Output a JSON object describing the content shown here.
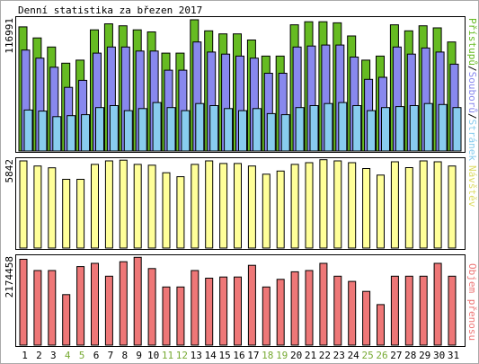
{
  "chart_data": [
    {
      "type": "bar",
      "title": "Denní statistika za březen 2017",
      "y_max_label": "116991",
      "legend": {
        "stranek": "Stránek",
        "sep1": "/",
        "souboru": "Souborů",
        "sep2": "/",
        "pristupu": "Přístupů"
      },
      "categories": [
        "1",
        "2",
        "3",
        "4",
        "5",
        "6",
        "7",
        "8",
        "9",
        "10",
        "11",
        "12",
        "13",
        "14",
        "15",
        "16",
        "17",
        "18",
        "19",
        "20",
        "21",
        "22",
        "23",
        "24",
        "25",
        "26",
        "27",
        "28",
        "29",
        "30",
        "31"
      ],
      "weekend_days": [
        "4",
        "5",
        "11",
        "12",
        "18",
        "19",
        "25",
        "26"
      ],
      "ylim": [
        0,
        116991
      ],
      "series": [
        {
          "name": "Přístupů",
          "color": "#66bb22",
          "values": [
            110700,
            100800,
            92700,
            78300,
            81000,
            108000,
            113400,
            111600,
            108000,
            106200,
            87300,
            87300,
            117000,
            107100,
            104400,
            104400,
            99000,
            84600,
            84600,
            112500,
            115200,
            115200,
            114300,
            102600,
            81000,
            84600,
            112500,
            107100,
            111600,
            109800,
            97200
          ]
        },
        {
          "name": "Souborů",
          "color": "#8888ee",
          "values": [
            90000,
            82800,
            74700,
            56700,
            63000,
            87300,
            92700,
            92700,
            89100,
            89100,
            72000,
            72000,
            97200,
            88200,
            86400,
            84600,
            82800,
            69300,
            69300,
            92700,
            93600,
            94500,
            94500,
            83700,
            63900,
            65700,
            92700,
            86400,
            91800,
            88200,
            77400
          ]
        },
        {
          "name": "Stránek",
          "color": "#88ccee",
          "values": [
            36500,
            35600,
            30600,
            31500,
            32400,
            38700,
            40500,
            36000,
            37800,
            43200,
            38700,
            36000,
            42300,
            40500,
            37800,
            36000,
            37800,
            33300,
            32400,
            38700,
            40500,
            42300,
            43200,
            40500,
            36000,
            38700,
            39600,
            40500,
            42300,
            41400,
            38700
          ]
        }
      ]
    },
    {
      "type": "bar",
      "y_max_label": "5842",
      "legend_label": "Návštěv",
      "categories": [
        "1",
        "2",
        "3",
        "4",
        "5",
        "6",
        "7",
        "8",
        "9",
        "10",
        "11",
        "12",
        "13",
        "14",
        "15",
        "16",
        "17",
        "18",
        "19",
        "20",
        "21",
        "22",
        "23",
        "24",
        "25",
        "26",
        "27",
        "28",
        "29",
        "30",
        "31"
      ],
      "ylim": [
        0,
        5842
      ],
      "series": [
        {
          "name": "Návštěv",
          "color": "#ffff99",
          "values": [
            5840,
            5500,
            5380,
            4610,
            4610,
            5610,
            5840,
            5890,
            5610,
            5550,
            5050,
            4780,
            5610,
            5840,
            5670,
            5670,
            5500,
            4950,
            5160,
            5610,
            5720,
            5920,
            5840,
            5720,
            5330,
            4890,
            5780,
            5390,
            5840,
            5780,
            5500
          ]
        }
      ]
    },
    {
      "type": "bar",
      "y_max_label": "2174458",
      "legend_label": "Objem přenosu",
      "categories": [
        "1",
        "2",
        "3",
        "4",
        "5",
        "6",
        "7",
        "8",
        "9",
        "10",
        "11",
        "12",
        "13",
        "14",
        "15",
        "16",
        "17",
        "18",
        "19",
        "20",
        "21",
        "22",
        "23",
        "24",
        "25",
        "26",
        "27",
        "28",
        "29",
        "30",
        "31"
      ],
      "ylim": [
        0,
        2174458
      ],
      "series": [
        {
          "name": "Objem přenosu",
          "color": "#ee7777",
          "values": [
            2140000,
            1860000,
            1860000,
            1260000,
            1960000,
            2040000,
            1720000,
            2080000,
            2190000,
            1910000,
            1450000,
            1450000,
            1860000,
            1670000,
            1700000,
            1700000,
            1990000,
            1450000,
            1640000,
            1830000,
            1860000,
            2040000,
            1720000,
            1590000,
            1340000,
            1010000,
            1720000,
            1720000,
            1720000,
            2040000,
            1720000
          ]
        }
      ]
    }
  ]
}
